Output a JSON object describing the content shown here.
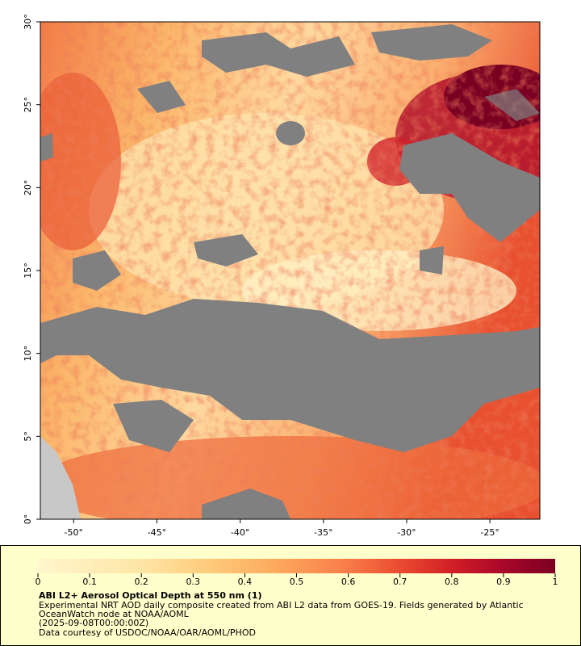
{
  "map": {
    "xlim": [
      -52,
      -22
    ],
    "ylim": [
      0,
      30
    ],
    "xticks": [
      {
        "value": -50,
        "label": "-50°"
      },
      {
        "value": -45,
        "label": "-45°"
      },
      {
        "value": -40,
        "label": "-40°"
      },
      {
        "value": -35,
        "label": "-35°"
      },
      {
        "value": -30,
        "label": "-30°"
      },
      {
        "value": -25,
        "label": "-25°"
      }
    ],
    "yticks": [
      {
        "value": 0,
        "label": "0°"
      },
      {
        "value": 5,
        "label": "5°"
      },
      {
        "value": 10,
        "label": "10°"
      },
      {
        "value": 15,
        "label": "15°"
      },
      {
        "value": 20,
        "label": "20°"
      },
      {
        "value": 25,
        "label": "25°"
      },
      {
        "value": 30,
        "label": "30°"
      }
    ]
  },
  "colorbar": {
    "range": [
      0,
      1
    ],
    "ticks": [
      0,
      0.1,
      0.2,
      0.3,
      0.4,
      0.5,
      0.6,
      0.7,
      0.8,
      0.9,
      1
    ]
  },
  "caption": {
    "title": "ABI L2+ Aerosol Optical Depth at 550 nm (1)",
    "lines": [
      "Experimental NRT AOD daily composite created from ABI L2 data from GOES-19. Fields generated by Atlantic",
      "OceanWatch node at NOAA/AOML",
      "(2025-09-08T00:00:00Z)",
      "Data courtesy of USDOC/NOAA/OAR/AOML/PHOD"
    ]
  }
}
